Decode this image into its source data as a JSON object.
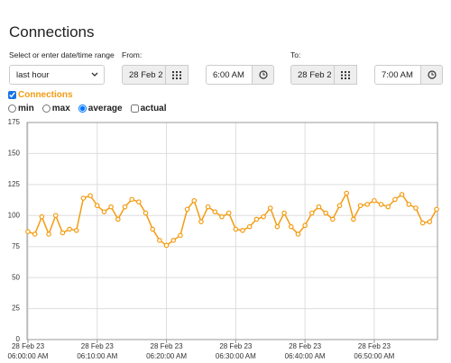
{
  "form": {
    "title": "Connections",
    "range_label": "Select or enter date/time range",
    "range_value": "last hour",
    "from_label": "From:",
    "from_date": "28 Feb 2",
    "from_time": "6:00 AM",
    "to_label": "To:",
    "to_date": "28 Feb 2",
    "to_time": "7:00 AM",
    "options": [
      "min",
      "max",
      "average",
      "actual"
    ],
    "selected": "average"
  },
  "chart_data": {
    "type": "line",
    "x": [
      "2023-02-28T06:00:00",
      "2023-02-28T06:01:00",
      "2023-02-28T06:02:00",
      "2023-02-28T06:03:00",
      "2023-02-28T06:04:00",
      "2023-02-28T06:05:00",
      "2023-02-28T06:06:00",
      "2023-02-28T06:07:00",
      "2023-02-28T06:08:00",
      "2023-02-28T06:09:00",
      "2023-02-28T06:10:00",
      "2023-02-28T06:11:00",
      "2023-02-28T06:12:00",
      "2023-02-28T06:13:00",
      "2023-02-28T06:14:00",
      "2023-02-28T06:15:00",
      "2023-02-28T06:16:00",
      "2023-02-28T06:17:00",
      "2023-02-28T06:18:00",
      "2023-02-28T06:19:00",
      "2023-02-28T06:20:00",
      "2023-02-28T06:21:00",
      "2023-02-28T06:22:00",
      "2023-02-28T06:23:00",
      "2023-02-28T06:24:00",
      "2023-02-28T06:25:00",
      "2023-02-28T06:26:00",
      "2023-02-28T06:27:00",
      "2023-02-28T06:28:00",
      "2023-02-28T06:29:00",
      "2023-02-28T06:30:00",
      "2023-02-28T06:31:00",
      "2023-02-28T06:32:00",
      "2023-02-28T06:33:00",
      "2023-02-28T06:34:00",
      "2023-02-28T06:35:00",
      "2023-02-28T06:36:00",
      "2023-02-28T06:37:00",
      "2023-02-28T06:38:00",
      "2023-02-28T06:39:00",
      "2023-02-28T06:40:00",
      "2023-02-28T06:41:00",
      "2023-02-28T06:42:00",
      "2023-02-28T06:43:00",
      "2023-02-28T06:44:00",
      "2023-02-28T06:45:00",
      "2023-02-28T06:46:00",
      "2023-02-28T06:47:00",
      "2023-02-28T06:48:00",
      "2023-02-28T06:49:00",
      "2023-02-28T06:50:00",
      "2023-02-28T06:51:00",
      "2023-02-28T06:52:00",
      "2023-02-28T06:53:00",
      "2023-02-28T06:54:00",
      "2023-02-28T06:55:00",
      "2023-02-28T06:56:00",
      "2023-02-28T06:57:00",
      "2023-02-28T06:58:00",
      "2023-02-28T06:59:00"
    ],
    "series": [
      {
        "name": "Connections",
        "color": "#f39c12",
        "values": [
          87,
          85,
          99,
          85,
          100,
          86,
          89,
          88,
          114,
          116,
          108,
          103,
          107,
          97,
          107,
          113,
          111,
          102,
          89,
          80,
          76,
          80,
          84,
          105,
          112,
          95,
          107,
          103,
          99,
          102,
          89,
          88,
          91,
          97,
          99,
          106,
          91,
          102,
          91,
          85,
          92,
          102,
          107,
          102,
          97,
          108,
          118,
          97,
          108,
          109,
          112,
          109,
          107,
          113,
          117,
          109,
          106,
          94,
          95,
          105
        ]
      }
    ],
    "xlim": [
      "2023-02-28T06:00:00",
      "2023-02-28T06:59:00"
    ],
    "xticks": [
      {
        "value": "2023-02-28T06:00:00",
        "label": [
          "28 Feb 23",
          "06:00:00 AM"
        ]
      },
      {
        "value": "2023-02-28T06:10:00",
        "label": [
          "28 Feb 23",
          "06:10:00 AM"
        ]
      },
      {
        "value": "2023-02-28T06:20:00",
        "label": [
          "28 Feb 23",
          "06:20:00 AM"
        ]
      },
      {
        "value": "2023-02-28T06:30:00",
        "label": [
          "28 Feb 23",
          "06:30:00 AM"
        ]
      },
      {
        "value": "2023-02-28T06:40:00",
        "label": [
          "28 Feb 23",
          "06:40:00 AM"
        ]
      },
      {
        "value": "2023-02-28T06:50:00",
        "label": [
          "28 Feb 23",
          "06:50:00 AM"
        ]
      }
    ],
    "ylim": [
      0,
      175
    ],
    "yticks": [
      0,
      25,
      50,
      75,
      100,
      125,
      150,
      175
    ],
    "grid": true
  }
}
